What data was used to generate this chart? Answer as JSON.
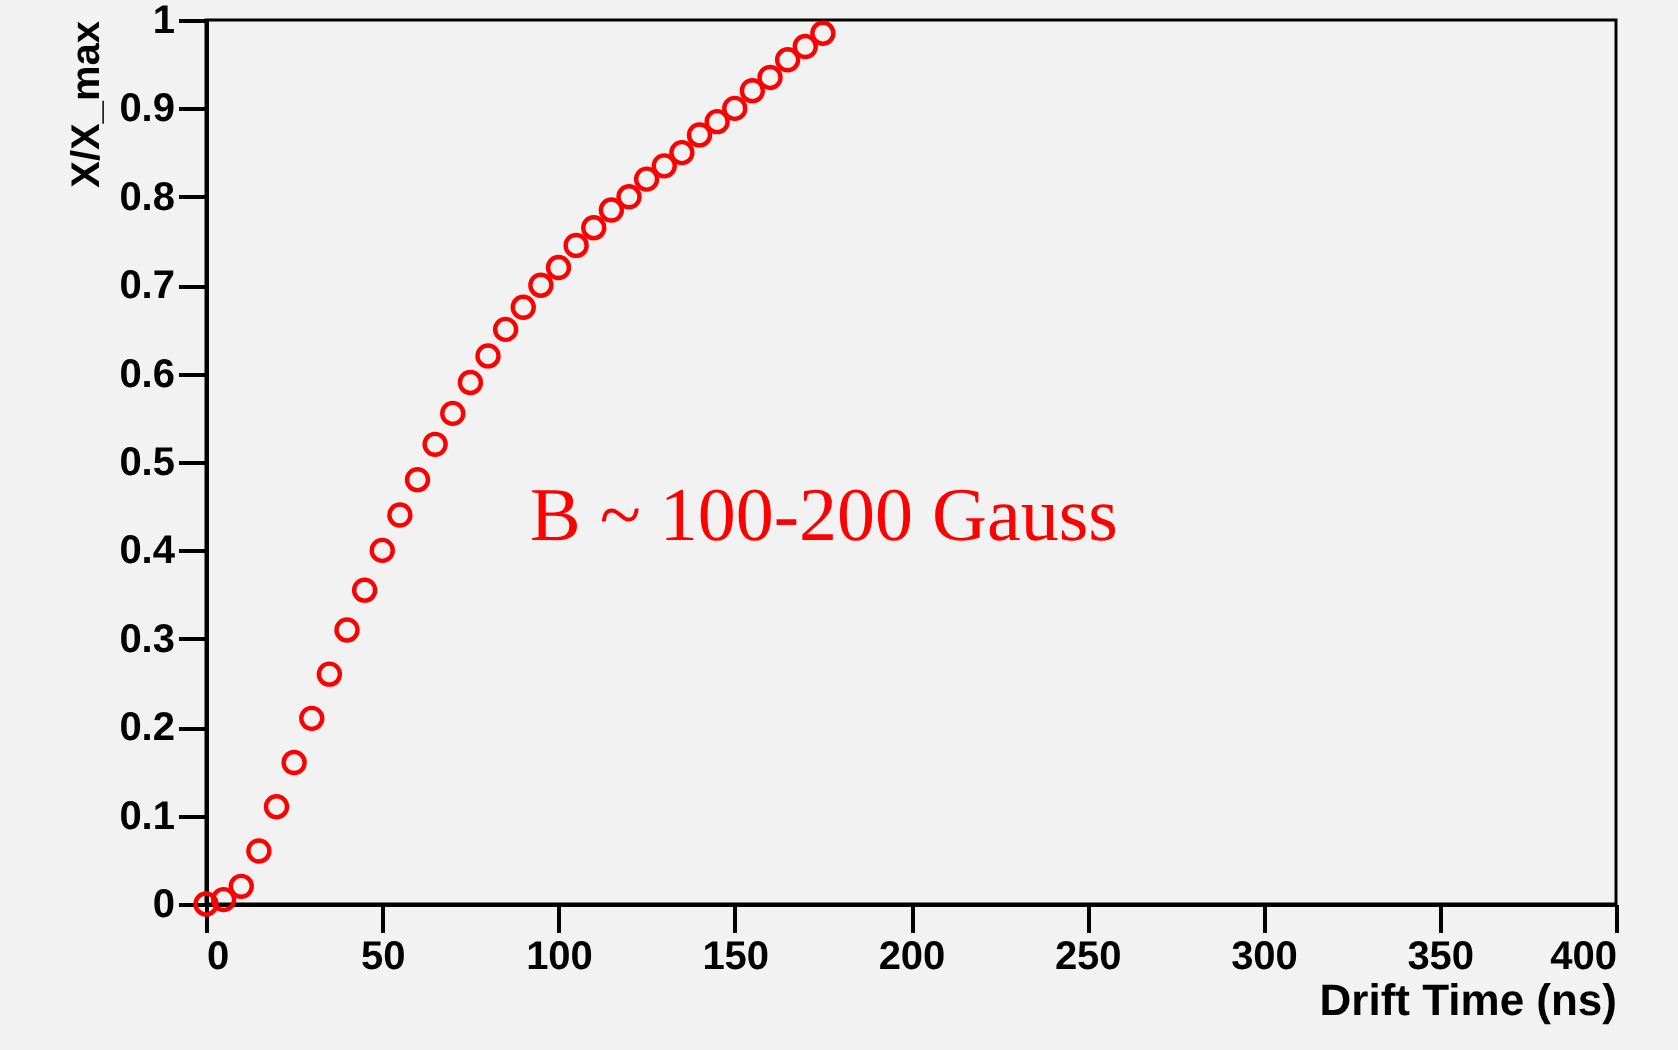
{
  "chart_data": {
    "type": "scatter",
    "xlabel": "Drift Time (ns)",
    "ylabel": "X/X_max",
    "x": [
      0,
      5,
      10,
      15,
      20,
      25,
      30,
      35,
      40,
      45,
      50,
      55,
      60,
      65,
      70,
      75,
      80,
      85,
      90,
      95,
      100,
      105,
      110,
      115,
      120,
      125,
      130,
      135,
      140,
      145,
      150,
      155,
      160,
      165,
      170,
      175
    ],
    "series": [
      {
        "color": "#ff0000",
        "values": [
          0,
          0.005,
          0.02,
          0.06,
          0.11,
          0.16,
          0.21,
          0.26,
          0.31,
          0.355,
          0.4,
          0.44,
          0.48,
          0.52,
          0.555,
          0.59,
          0.62,
          0.65,
          0.675,
          0.7,
          0.72,
          0.745,
          0.765,
          0.785,
          0.8,
          0.82,
          0.835,
          0.85,
          0.87,
          0.885,
          0.9,
          0.92,
          0.935,
          0.955,
          0.97,
          0.985
        ]
      }
    ],
    "xlim": [
      0,
      400
    ],
    "xticks": [
      0,
      50,
      100,
      150,
      200,
      250,
      300,
      350,
      400
    ],
    "ylim": [
      0,
      1
    ],
    "yticks": [
      0,
      0.1,
      0.2,
      0.3,
      0.4,
      0.5,
      0.6,
      0.7,
      0.8,
      0.9,
      1
    ],
    "marker": "circle",
    "annotations": [
      "B ~ 100-200 Gauss"
    ]
  }
}
